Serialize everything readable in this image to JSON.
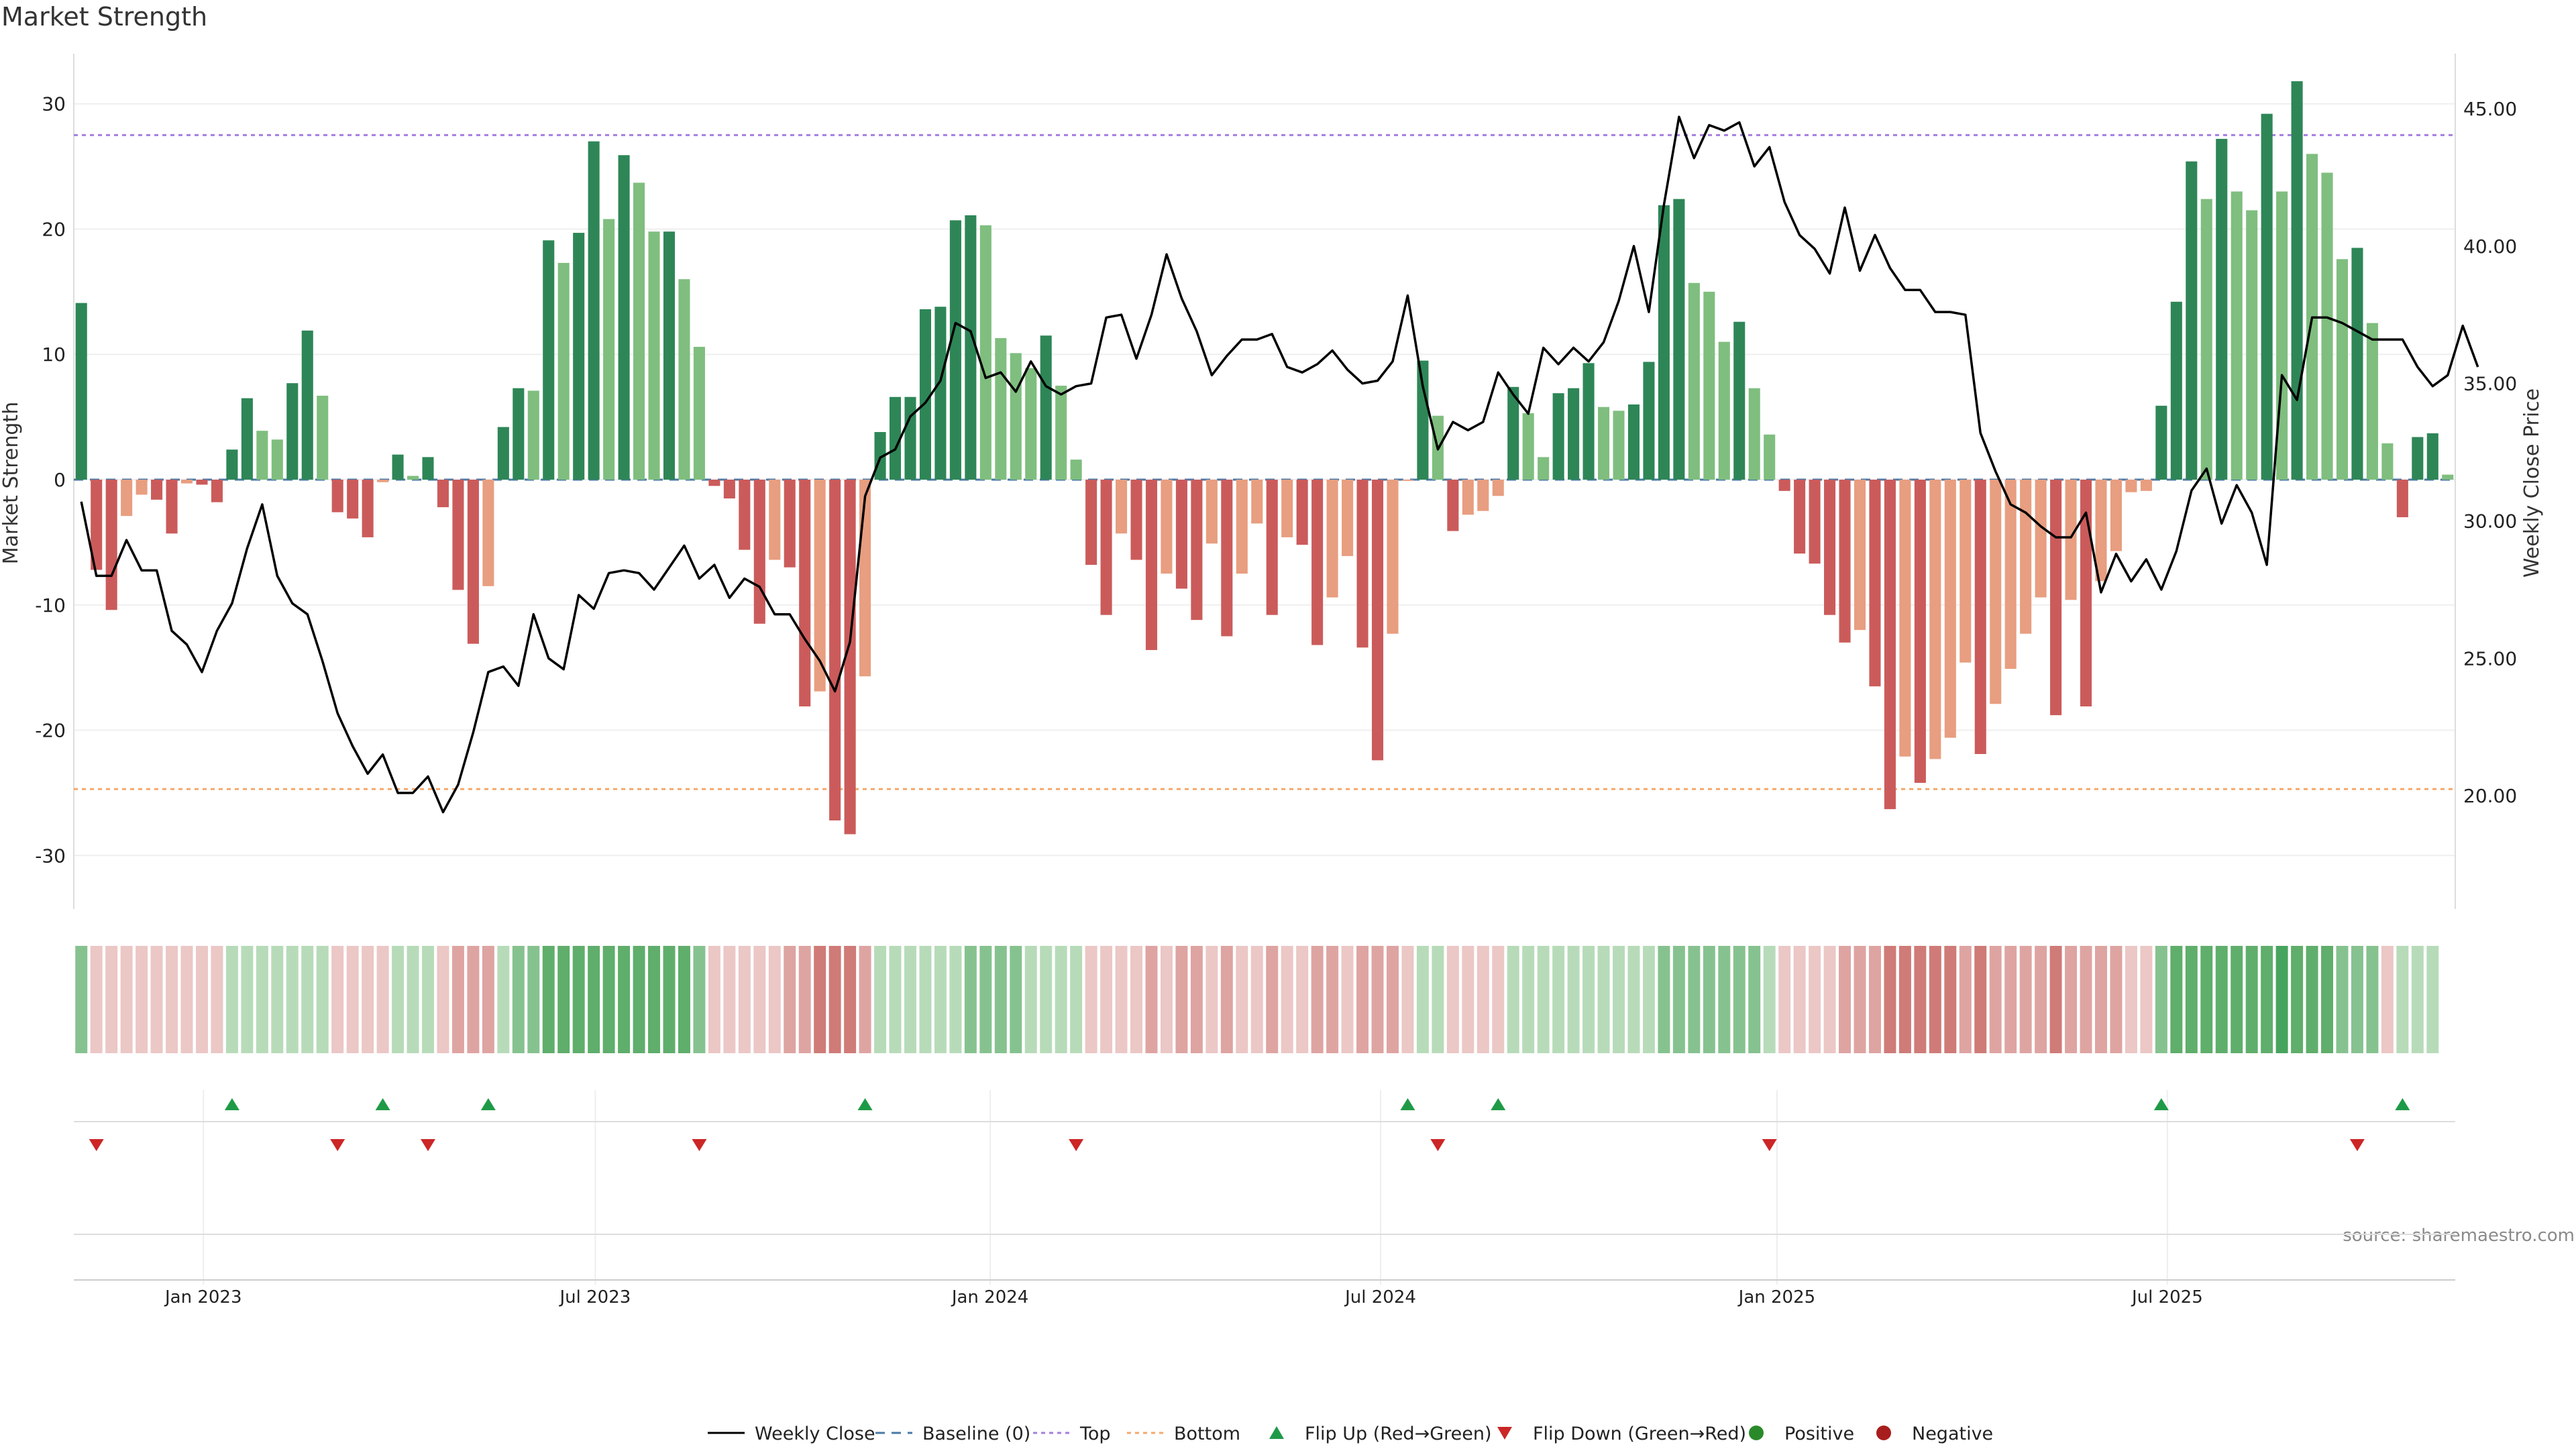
{
  "chart_data": {
    "type": "bar+line",
    "title": "Market Strength",
    "ylabel": "Market Strength",
    "y2label": "Weekly Close Price",
    "source": "source: sharemaestro.com",
    "ylim": [
      -34,
      34
    ],
    "y2lim": [
      16,
      47
    ],
    "yticks": [
      30,
      20,
      10,
      0,
      -10,
      -20,
      -30
    ],
    "y2ticks": [
      "45.00",
      "40.00",
      "35.00",
      "30.00",
      "25.00",
      "20.00"
    ],
    "top_threshold": 27.5,
    "bottom_threshold": -24.7,
    "x_labels": [
      {
        "label": "Jan 2023",
        "week": 8.6
      },
      {
        "label": "Jul 2023",
        "week": 34.6
      },
      {
        "label": "Jan 2024",
        "week": 60.8
      },
      {
        "label": "Jul 2024",
        "week": 86.7
      },
      {
        "label": "Jan 2025",
        "week": 113.0
      },
      {
        "label": "Jul 2025",
        "week": 138.9
      }
    ],
    "strength": [
      14.1,
      -7.2,
      -10.4,
      -2.9,
      -1.2,
      -1.6,
      -4.3,
      -0.3,
      -0.4,
      -1.8,
      2.4,
      6.5,
      3.9,
      3.2,
      7.7,
      11.9,
      6.7,
      -2.6,
      -3.1,
      -4.6,
      -0.2,
      2,
      0.3,
      1.8,
      -2.2,
      -8.8,
      -13.1,
      -8.5,
      4.2,
      7.3,
      7.1,
      19.1,
      17.3,
      19.7,
      27,
      20.8,
      25.9,
      23.7,
      19.8,
      19.8,
      16,
      10.6,
      -0.5,
      -1.5,
      -5.6,
      -11.5,
      -6.4,
      -7,
      -18.1,
      -16.9,
      -27.2,
      -28.3,
      -15.7,
      3.8,
      6.6,
      6.6,
      13.6,
      13.8,
      20.7,
      21.1,
      20.3,
      11.3,
      10.1,
      8.9,
      11.5,
      7.5,
      1.6,
      -6.8,
      -10.8,
      -4.3,
      -6.4,
      -13.6,
      -7.5,
      -8.7,
      -11.2,
      -5.1,
      -12.5,
      -7.5,
      -3.5,
      -10.8,
      -4.6,
      -5.2,
      -13.2,
      -9.4,
      -6.1,
      -13.4,
      -22.4,
      -12.3,
      -0.1,
      9.5,
      5.1,
      -4.1,
      -2.8,
      -2.5,
      -1.3,
      7.4,
      5.3,
      1.8,
      6.9,
      7.3,
      9.3,
      5.8,
      5.5,
      6,
      9.4,
      21.9,
      22.4,
      15.7,
      15,
      11,
      12.6,
      7.3,
      3.6,
      -0.9,
      -5.9,
      -6.7,
      -10.8,
      -13,
      -12,
      -16.5,
      -26.3,
      -22.1,
      -24.2,
      -22.3,
      -20.6,
      -14.6,
      -21.9,
      -17.9,
      -15.1,
      -12.3,
      -9.4,
      -18.8,
      -9.6,
      -18.1,
      -8.1,
      -5.7,
      -1,
      -0.9,
      5.9,
      14.2,
      25.4,
      22.4,
      27.2,
      23,
      21.5,
      29.2,
      23,
      31.8,
      26,
      24.5,
      17.6,
      18.5,
      12.5,
      2.9,
      -3,
      3.4,
      3.7,
      0.4
    ],
    "weekly_close": [
      30.7,
      28,
      28,
      29.3,
      28.2,
      28.2,
      26,
      25.5,
      24.5,
      26,
      27,
      29,
      30.6,
      28,
      27,
      26.6,
      24.9,
      23,
      21.8,
      20.8,
      21.5,
      20.1,
      20.1,
      20.7,
      19.4,
      20.4,
      22.3,
      24.5,
      24.7,
      24,
      26.6,
      25,
      24.6,
      27.3,
      26.8,
      28.1,
      28.2,
      28.1,
      27.5,
      28.3,
      29.1,
      27.9,
      28.4,
      27.2,
      27.9,
      27.6,
      26.6,
      26.6,
      25.7,
      24.9,
      23.8,
      25.6,
      30.9,
      32.3,
      32.6,
      33.8,
      34.3,
      35.1,
      37.2,
      36.9,
      35.2,
      35.4,
      34.7,
      35.8,
      34.9,
      34.6,
      34.9,
      35,
      37.4,
      37.5,
      35.9,
      37.5,
      39.7,
      38.1,
      36.9,
      35.3,
      36,
      36.6,
      36.6,
      36.8,
      35.6,
      35.4,
      35.7,
      36.2,
      35.5,
      35,
      35.1,
      35.8,
      38.2,
      34.9,
      32.6,
      33.6,
      33.3,
      33.6,
      35.4,
      34.6,
      33.9,
      36.3,
      35.7,
      36.3,
      35.8,
      36.5,
      38,
      40,
      37.6,
      41.5,
      44.7,
      43.2,
      44.4,
      44.2,
      44.5,
      42.9,
      43.6,
      41.6,
      40.4,
      39.9,
      39,
      41.4,
      39.1,
      40.4,
      39.2,
      38.4,
      38.4,
      37.6,
      37.6,
      37.5,
      33.2,
      31.8,
      30.6,
      30.3,
      29.8,
      29.4,
      29.4,
      30.3,
      27.4,
      28.8,
      27.8,
      28.6,
      27.5,
      28.9,
      31.1,
      31.9,
      29.9,
      31.3,
      30.3,
      28.4,
      35.3,
      34.4,
      37.4,
      37.4,
      37.2,
      36.9,
      36.6,
      36.6,
      36.6,
      35.6,
      34.9,
      35.3,
      37.1,
      35.6
    ],
    "band_levels": [
      2,
      -1,
      -1,
      -1,
      -1,
      -1,
      -1,
      -1,
      -1,
      -1,
      1,
      1,
      1,
      1,
      1,
      1,
      1,
      -1,
      -1,
      -1,
      -1,
      1,
      1,
      1,
      -1,
      -2,
      -2,
      -2,
      1,
      2,
      2,
      3,
      3,
      3,
      3,
      3,
      3,
      3,
      3,
      3,
      3,
      2,
      -1,
      -1,
      -1,
      -1,
      -1,
      -2,
      -2,
      -3,
      -3,
      -3,
      -2,
      1,
      1,
      1,
      1,
      1,
      1,
      2,
      2,
      2,
      2,
      1,
      1,
      1,
      1,
      -1,
      -1,
      -1,
      -1,
      -2,
      -1,
      -2,
      -2,
      -1,
      -2,
      -1,
      -1,
      -2,
      -1,
      -1,
      -2,
      -2,
      -1,
      -2,
      -2,
      -2,
      -1,
      1,
      1,
      -1,
      -1,
      -1,
      -1,
      1,
      1,
      1,
      1,
      1,
      1,
      1,
      1,
      1,
      1,
      2,
      2,
      2,
      2,
      2,
      2,
      2,
      1,
      -1,
      -1,
      -1,
      -1,
      -2,
      -2,
      -2,
      -3,
      -3,
      -3,
      -3,
      -3,
      -2,
      -3,
      -2,
      -2,
      -2,
      -2,
      -3,
      -2,
      -2,
      -2,
      -2,
      -1,
      -1,
      2,
      3,
      3,
      3,
      3,
      3,
      3,
      3,
      4,
      3,
      3,
      3,
      2,
      2,
      2,
      -1,
      1,
      1,
      1
    ],
    "flip_up_weeks": [
      10,
      20,
      27,
      52,
      88,
      94,
      138,
      154
    ],
    "flip_down_weeks": [
      1,
      17,
      23,
      41,
      66,
      90,
      112,
      151
    ],
    "n_weeks": 158,
    "colors": {
      "bar_pos_strong": "#2e8657",
      "bar_pos_light": "#7fbe7f",
      "bar_neg_strong": "#cb5b5b",
      "bar_neg_light": "#e89e80",
      "line": "#000000",
      "baseline": "#4a79a7",
      "top": "#a47ee0",
      "bottom": "#f5a86b",
      "flip_up": "#1e9a47",
      "flip_down": "#cc2626",
      "positive": "#2a8a2a",
      "negative": "#a81e1e"
    },
    "legend": [
      {
        "key": "line",
        "label": "Weekly Close"
      },
      {
        "key": "baseline",
        "label": "Baseline (0)"
      },
      {
        "key": "top",
        "label": "Top"
      },
      {
        "key": "bottom",
        "label": "Bottom"
      },
      {
        "key": "flip_up",
        "label": "Flip Up (Red→Green)"
      },
      {
        "key": "flip_down",
        "label": "Flip Down (Green→Red)"
      },
      {
        "key": "positive",
        "label": "Positive"
      },
      {
        "key": "negative",
        "label": "Negative"
      }
    ]
  }
}
